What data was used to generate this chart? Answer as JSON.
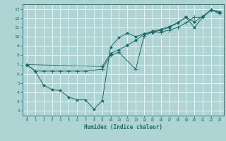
{
  "title": "",
  "xlabel": "Humidex (Indice chaleur)",
  "ylabel": "",
  "bg_color": "#aed4d4",
  "grid_color": "#ffffff",
  "line_color": "#1a6b6b",
  "xlim": [
    -0.5,
    23.5
  ],
  "ylim": [
    1.5,
    13.5
  ],
  "xticks": [
    0,
    1,
    2,
    3,
    4,
    5,
    6,
    7,
    8,
    9,
    10,
    11,
    12,
    13,
    14,
    15,
    16,
    17,
    18,
    19,
    20,
    21,
    22,
    23
  ],
  "yticks": [
    2,
    3,
    4,
    5,
    6,
    7,
    8,
    9,
    10,
    11,
    12,
    13
  ],
  "lines": [
    {
      "x": [
        0,
        1,
        2,
        3,
        4,
        5,
        6,
        7,
        8,
        9,
        10,
        11,
        12,
        13,
        14,
        15,
        16,
        17,
        18,
        19,
        20,
        21,
        22,
        23
      ],
      "y": [
        7.0,
        6.3,
        4.8,
        4.3,
        4.2,
        3.5,
        3.2,
        3.2,
        2.2,
        3.1,
        8.9,
        9.9,
        10.4,
        10.0,
        10.3,
        10.5,
        10.7,
        11.0,
        11.5,
        12.1,
        11.0,
        12.1,
        12.9,
        12.7
      ]
    },
    {
      "x": [
        0,
        1,
        2,
        3,
        4,
        5,
        6,
        7,
        9,
        10,
        11,
        13,
        14,
        15,
        16,
        17,
        18,
        19,
        20,
        21,
        22,
        23
      ],
      "y": [
        7.0,
        6.3,
        6.3,
        6.3,
        6.3,
        6.3,
        6.3,
        6.3,
        6.5,
        8.0,
        8.3,
        6.5,
        10.1,
        10.5,
        10.5,
        10.7,
        11.0,
        11.5,
        12.1,
        12.1,
        12.9,
        12.5
      ]
    },
    {
      "x": [
        0,
        9,
        10,
        11,
        12,
        13,
        14,
        15,
        16,
        17,
        18,
        19,
        20,
        21,
        22,
        23
      ],
      "y": [
        7.0,
        6.8,
        8.2,
        8.6,
        9.1,
        9.6,
        10.3,
        10.6,
        10.8,
        11.1,
        11.5,
        12.1,
        11.6,
        12.2,
        12.9,
        12.6
      ]
    }
  ]
}
